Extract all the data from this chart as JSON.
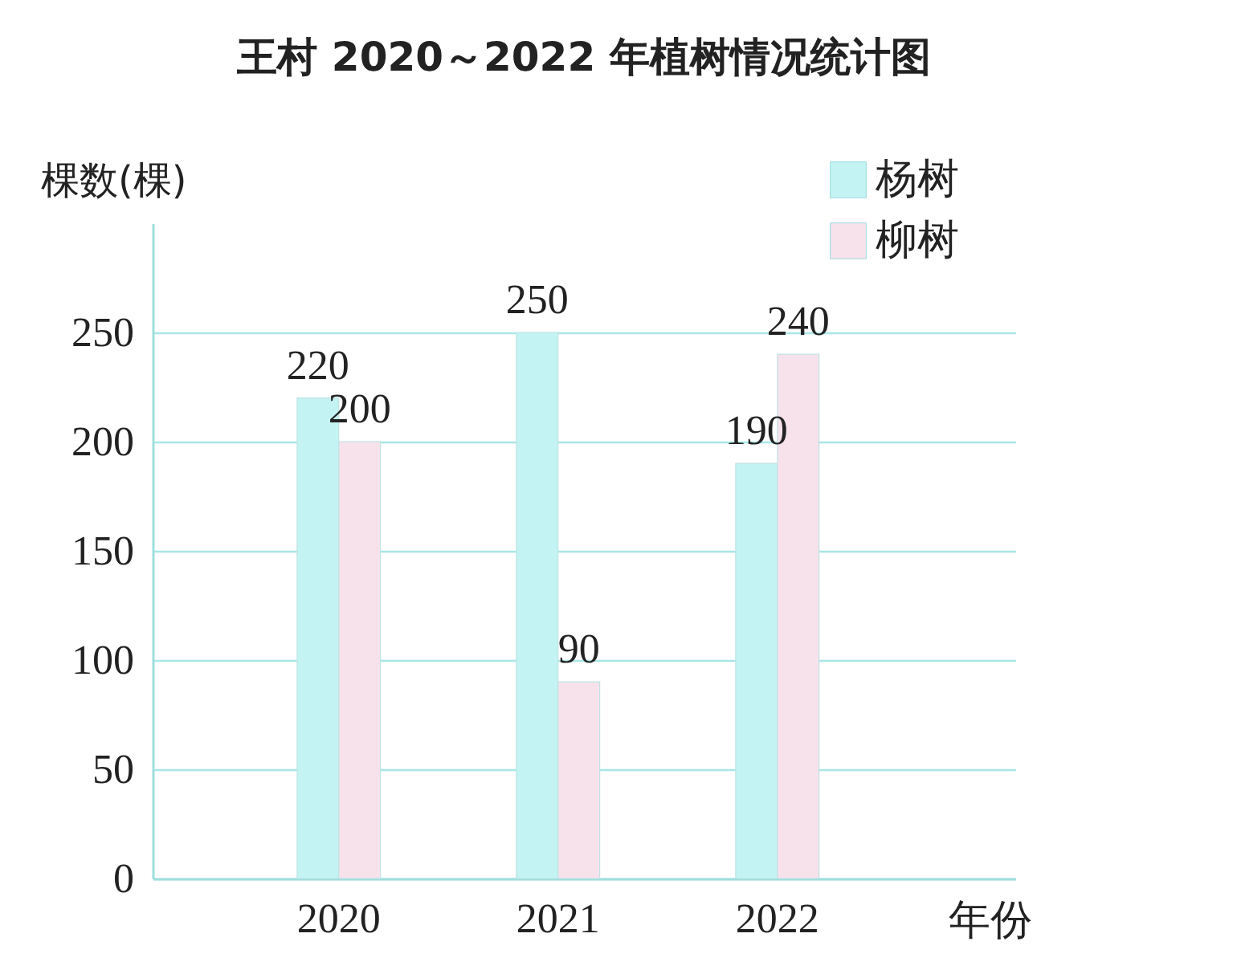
{
  "chart_data": {
    "type": "bar",
    "title": "王村 2020～2022 年植树情况统计图",
    "xlabel": "年份",
    "ylabel": "棵数(棵)",
    "categories": [
      "2020",
      "2021",
      "2022"
    ],
    "series": [
      {
        "name": "杨树",
        "color": "#c4f3f3",
        "values": [
          220,
          250,
          190
        ]
      },
      {
        "name": "柳树",
        "color": "#f7e2ec",
        "values": [
          200,
          90,
          240
        ]
      }
    ],
    "ylim": [
      0,
      300
    ],
    "yticks": [
      0,
      50,
      100,
      150,
      200,
      250
    ],
    "grid": "y",
    "legend": "top right",
    "data_labels": true
  }
}
